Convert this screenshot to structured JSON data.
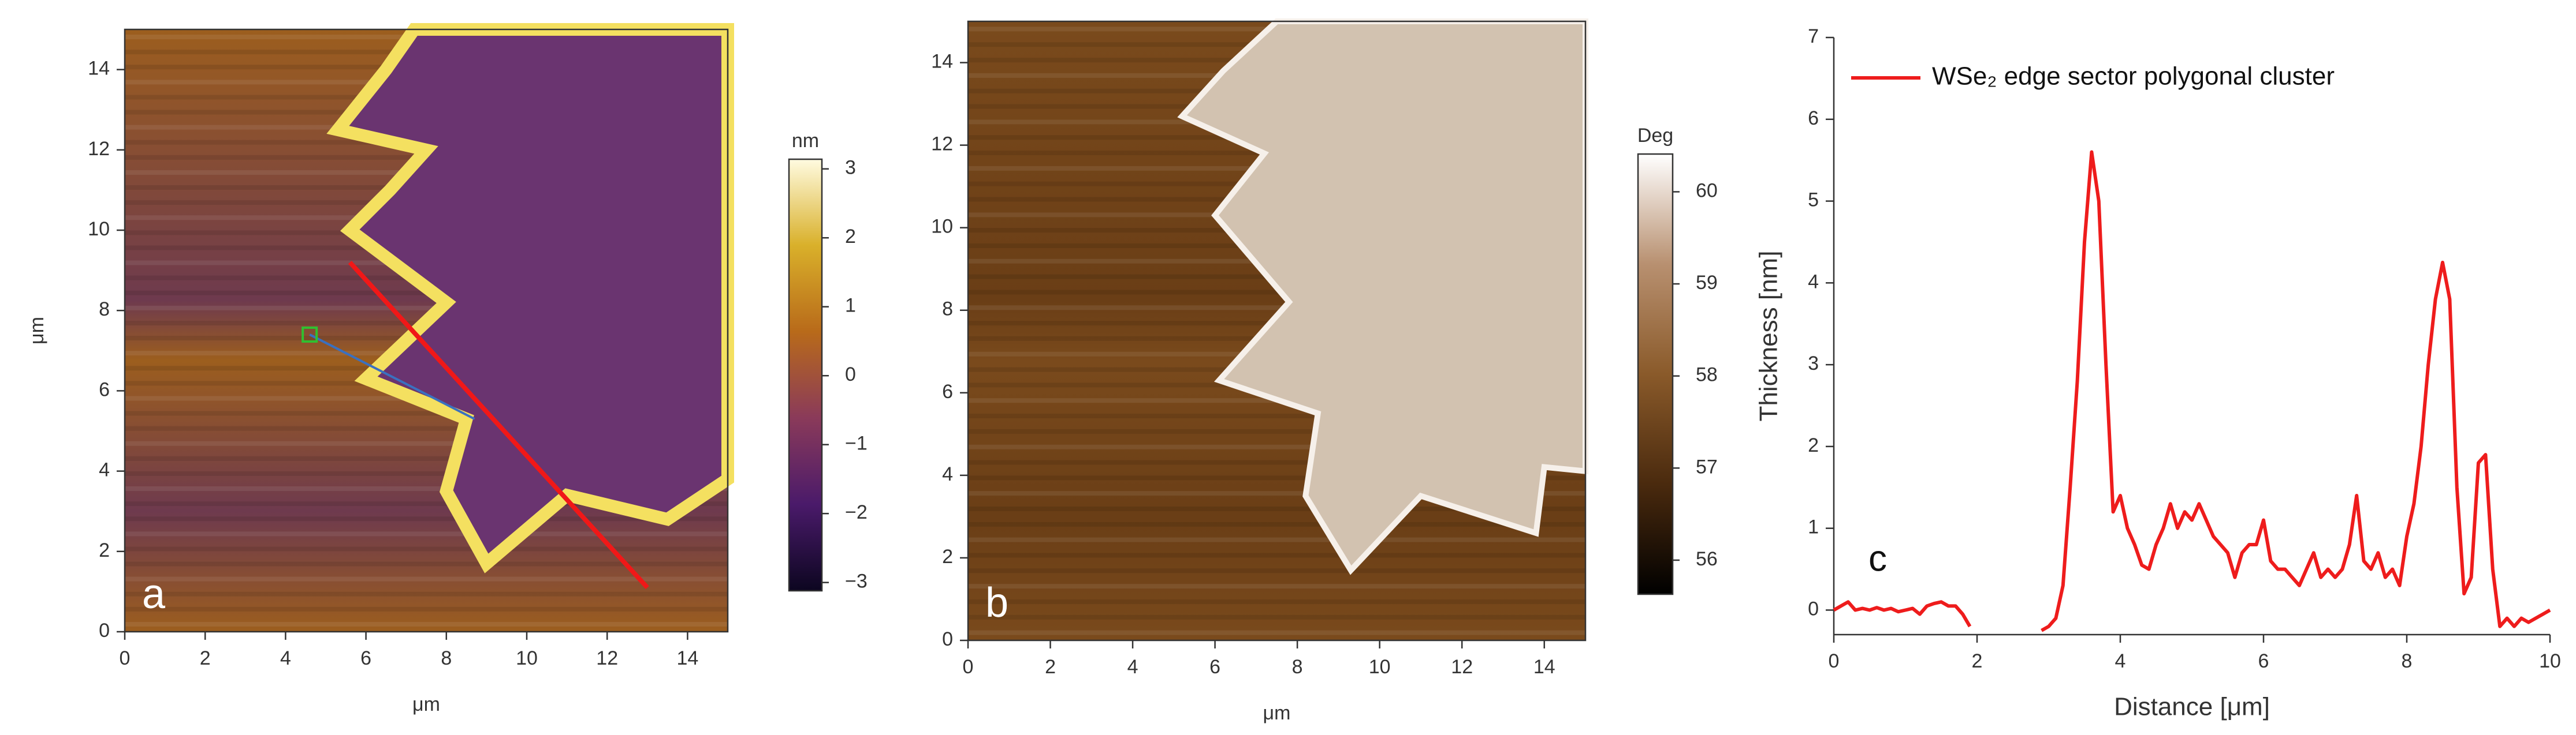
{
  "chart_data": [
    {
      "type": "image",
      "panel_label": "a",
      "xlabel": "μm",
      "ylabel": "μm",
      "xlim": [
        0,
        15
      ],
      "xticks": [
        0,
        2,
        4,
        6,
        8,
        10,
        12,
        14
      ],
      "ylim": [
        0,
        15
      ],
      "yticks": [
        0,
        2,
        4,
        6,
        8,
        10,
        12,
        14
      ],
      "colorbar": {
        "title": "nm",
        "lim": [
          -3.12,
          3.14
        ],
        "ticks": [
          {
            "value": -3,
            "label": "−3"
          },
          {
            "value": -2,
            "label": "−2"
          },
          {
            "value": -1,
            "label": "−1"
          },
          0,
          1,
          2,
          3
        ],
        "colors": [
          "#0c0620",
          "#4a1a6a",
          "#8a3a5a",
          "#b86a1a",
          "#d9b02a",
          "#fffbe0"
        ]
      }
    },
    {
      "type": "image",
      "panel_label": "b",
      "xlabel": "μm",
      "xlim": [
        0,
        15
      ],
      "xticks": [
        0,
        2,
        4,
        6,
        8,
        10,
        12,
        14
      ],
      "ylim": [
        0,
        15
      ],
      "yticks": [
        0,
        2,
        4,
        6,
        8,
        10,
        12,
        14
      ],
      "colorbar": {
        "title": "Deg",
        "lim": [
          55.63,
          60.41
        ],
        "ticks": [
          56,
          57,
          58,
          59,
          60
        ],
        "colors": [
          "#000000",
          "#4a2a0e",
          "#8a5a2a",
          "#b89070",
          "#ffffff"
        ]
      }
    },
    {
      "type": "line",
      "panel_label": "c",
      "xlabel": "Distance [μm]",
      "ylabel": "Thickness [nm]",
      "xlim": [
        0,
        10
      ],
      "xticks": [
        0,
        2,
        4,
        6,
        8,
        10
      ],
      "ylim": [
        -0.3,
        7
      ],
      "yticks": [
        0,
        1,
        2,
        3,
        4,
        5,
        6,
        7
      ],
      "legend": "upper left",
      "x": [
        0,
        0.1,
        0.2,
        0.3,
        0.4,
        0.5,
        0.6,
        0.7,
        0.8,
        0.9,
        1,
        1.1,
        1.2,
        1.3,
        1.4,
        1.5,
        1.6,
        1.7,
        1.8,
        1.9,
        2,
        2.1,
        2.2,
        2.3,
        2.4,
        2.5,
        2.6,
        2.7,
        2.8,
        2.9,
        3,
        3.1,
        3.2,
        3.3,
        3.4,
        3.5,
        3.6,
        3.7,
        3.8,
        3.9,
        4,
        4.1,
        4.2,
        4.3,
        4.4,
        4.5,
        4.6,
        4.7,
        4.8,
        4.9,
        5,
        5.1,
        5.2,
        5.3,
        5.4,
        5.5,
        5.6,
        5.7,
        5.8,
        5.9,
        6,
        6.1,
        6.2,
        6.3,
        6.4,
        6.5,
        6.6,
        6.7,
        6.8,
        6.9,
        7,
        7.1,
        7.2,
        7.3,
        7.4,
        7.5,
        7.6,
        7.7,
        7.8,
        7.9,
        8,
        8.1,
        8.2,
        8.3,
        8.4,
        8.5,
        8.6,
        8.7,
        8.8,
        8.9,
        9,
        9.1,
        9.2,
        9.3,
        9.4,
        9.5,
        9.6,
        9.7,
        9.8,
        9.9,
        10
      ],
      "series": [
        {
          "name": "WSe₂ edge sector polygonal cluster",
          "color": "#ee1c1c",
          "values": [
            0,
            0.05,
            0.1,
            0,
            0.02,
            0,
            0.03,
            0,
            0.02,
            -0.02,
            0,
            0.02,
            -0.05,
            0.05,
            0.08,
            0.1,
            0.05,
            0.05,
            -0.05,
            -0.2,
            null,
            null,
            null,
            null,
            null,
            null,
            null,
            null,
            null,
            -0.25,
            -0.2,
            -0.1,
            0.3,
            1.5,
            2.8,
            4.5,
            5.6,
            5,
            3,
            1.2,
            1.4,
            1,
            0.8,
            0.55,
            0.5,
            0.8,
            1,
            1.3,
            1,
            1.2,
            1.1,
            1.3,
            1.1,
            0.9,
            0.8,
            0.7,
            0.4,
            0.7,
            0.8,
            0.8,
            1.1,
            0.6,
            0.5,
            0.5,
            0.4,
            0.3,
            0.5,
            0.7,
            0.4,
            0.5,
            0.4,
            0.5,
            0.8,
            1.4,
            0.6,
            0.5,
            0.7,
            0.4,
            0.5,
            0.3,
            0.9,
            1.3,
            2,
            3,
            3.8,
            4.25,
            3.8,
            1.5,
            0.2,
            0.4,
            1.8,
            1.9,
            0.5,
            -0.2,
            -0.1,
            -0.2,
            -0.1,
            -0.15,
            -0.1,
            -0.05,
            0
          ]
        }
      ]
    }
  ]
}
